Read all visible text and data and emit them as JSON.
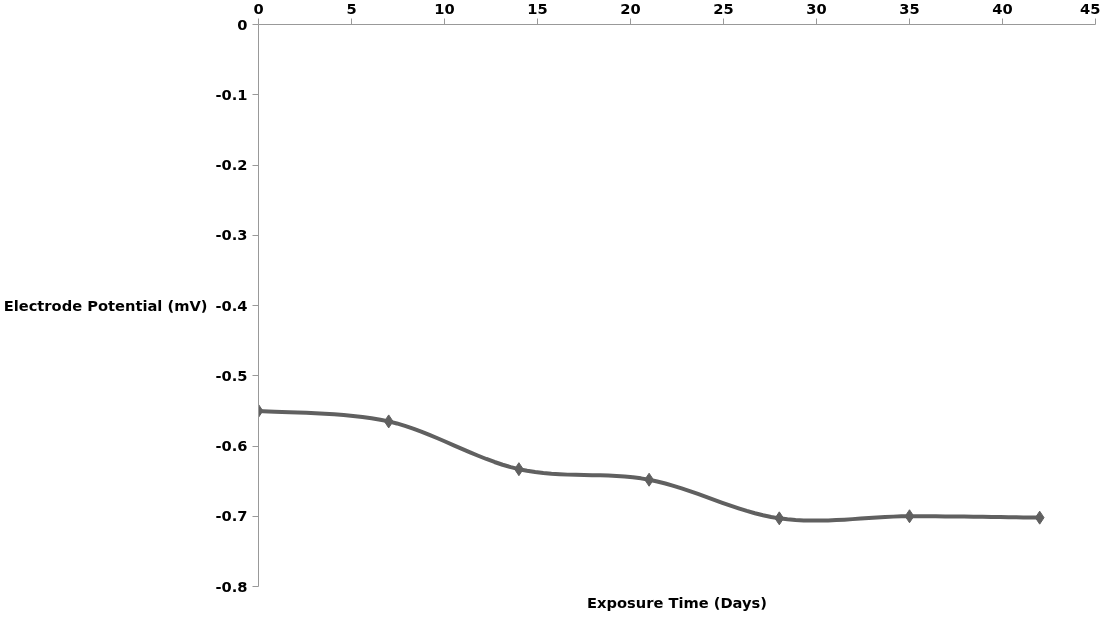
{
  "chart_data": {
    "type": "line",
    "xlabel": "Exposure Time (Days)",
    "ylabel": "Electrode Potential (mV)",
    "x": [
      0,
      7,
      14,
      21,
      28,
      35,
      42
    ],
    "series": [
      {
        "color": "#606060",
        "values": [
          -0.55,
          -0.565,
          -0.633,
          -0.648,
          -0.703,
          -0.7,
          -0.702
        ]
      }
    ],
    "xlim": [
      0,
      45
    ],
    "xticks": [
      0,
      5,
      10,
      15,
      20,
      25,
      30,
      35,
      40,
      45
    ],
    "ylim": [
      -0.8,
      0
    ],
    "yticks": [
      {
        "value": -0.8,
        "label": "-0.8"
      },
      {
        "value": -0.7,
        "label": "-0.7"
      },
      {
        "value": -0.6,
        "label": "-0.6"
      },
      {
        "value": -0.5,
        "label": "-0.5"
      },
      {
        "value": -0.4,
        "label": "-0.4"
      },
      {
        "value": -0.3,
        "label": "-0.3"
      },
      {
        "value": -0.2,
        "label": "-0.2"
      },
      {
        "value": -0.1,
        "label": "-0.1"
      },
      0
    ],
    "grid": false,
    "marker": "diamond",
    "line_style": "solid"
  }
}
